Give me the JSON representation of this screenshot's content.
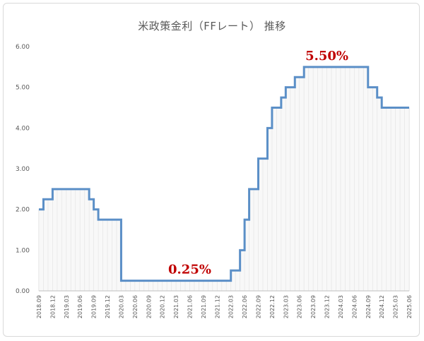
{
  "chart_data": {
    "type": "line",
    "title": "米政策金利（FFレート） 推移",
    "xlabel": "",
    "ylabel": "",
    "ylim": [
      0,
      6
    ],
    "yticks": [
      "0.00",
      "1.00",
      "2.00",
      "3.00",
      "4.00",
      "5.00",
      "6.00"
    ],
    "x_tick_labels": [
      "2018.09",
      "2018.12",
      "2019.03",
      "2019.06",
      "2019.09",
      "2019.12",
      "2020.03",
      "2020.06",
      "2020.09",
      "2020.12",
      "2021.03",
      "2021.06",
      "2021.09",
      "2021.12",
      "2022.03",
      "2022.06",
      "2022.09",
      "2022.12",
      "2023.03",
      "2023.06",
      "2023.09",
      "2023.12",
      "2024.03",
      "2024.06",
      "2024.09",
      "2024.12",
      "2025.03",
      "2025.06"
    ],
    "x_range": [
      "2018-09",
      "2025-06"
    ],
    "grid": "vertical monthly lines",
    "series": [
      {
        "name": "",
        "color": "#5b8fc7",
        "step": true,
        "points": [
          [
            "2018-09",
            2.0
          ],
          [
            "2018-10",
            2.25
          ],
          [
            "2018-12",
            2.5
          ],
          [
            "2019-08",
            2.25
          ],
          [
            "2019-09",
            2.0
          ],
          [
            "2019-10",
            1.75
          ],
          [
            "2020-03",
            0.25
          ],
          [
            "2022-03",
            0.5
          ],
          [
            "2022-05",
            1.0
          ],
          [
            "2022-06",
            1.75
          ],
          [
            "2022-07",
            2.5
          ],
          [
            "2022-09",
            3.25
          ],
          [
            "2022-11",
            4.0
          ],
          [
            "2022-12",
            4.5
          ],
          [
            "2023-02",
            4.75
          ],
          [
            "2023-03",
            5.0
          ],
          [
            "2023-05",
            5.25
          ],
          [
            "2023-07",
            5.5
          ],
          [
            "2024-09",
            5.0
          ],
          [
            "2024-11",
            4.75
          ],
          [
            "2024-12",
            4.5
          ],
          [
            "2025-06",
            4.5
          ]
        ]
      }
    ],
    "annotations": [
      {
        "text": "5.50%",
        "x": "2023-12",
        "y": 5.5
      },
      {
        "text": "0.25%",
        "x": "2021-06",
        "y": 0.25
      }
    ]
  }
}
